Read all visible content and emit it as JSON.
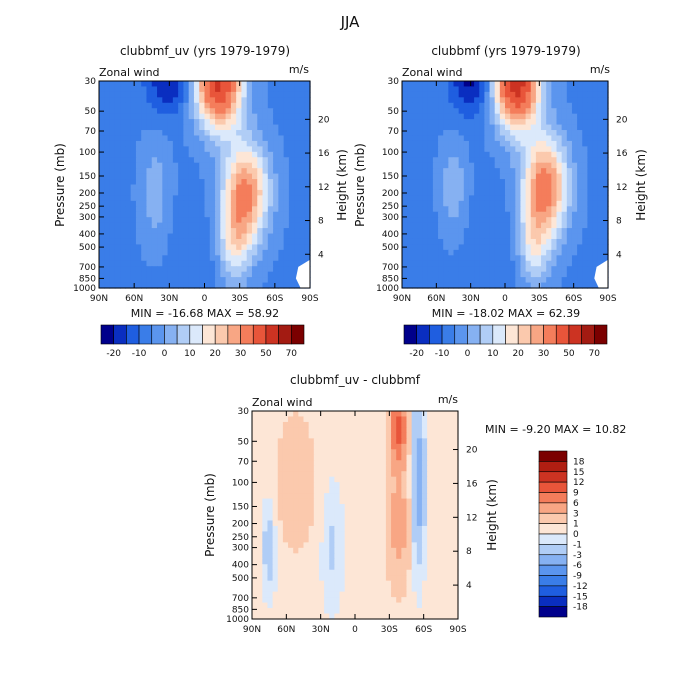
{
  "page_title": "JJA",
  "chart_data": [
    {
      "type": "heatmap",
      "title": "clubbmf_uv (yrs 1979-1979)",
      "variable_label": "Zonal wind",
      "units": "m/s",
      "ylabel": "Pressure (mb)",
      "y2label": "Height (km)",
      "xticks": [
        "90N",
        "60N",
        "30N",
        "0",
        "30S",
        "60S",
        "90S"
      ],
      "yticks": [
        "30",
        "50",
        "70",
        "100",
        "150",
        "200",
        "250",
        "300",
        "400",
        "500",
        "700",
        "850",
        "1000"
      ],
      "y2ticks": [
        "20",
        "16",
        "12",
        "8",
        "4"
      ],
      "stats": "MIN = -16.68   MAX = 58.92",
      "colorbar": {
        "labels": [
          "-20",
          "-10",
          "0",
          "10",
          "20",
          "30",
          "50",
          "70"
        ],
        "colors": [
          "#00008b",
          "#0a2ec0",
          "#1f5ee0",
          "#3a7de8",
          "#5b95ee",
          "#86b1f2",
          "#b0cdf6",
          "#dbe9fb",
          "#fde6d6",
          "#fbc9ad",
          "#f8a684",
          "#f47d5b",
          "#e8553a",
          "#cc3322",
          "#a31b12",
          "#7b0000"
        ]
      },
      "field": {
        "background": -6,
        "features": [
          {
            "lat": -12,
            "p": 30,
            "amp": 58,
            "sx": 14,
            "sy": 0.55
          },
          {
            "lat": -35,
            "p": 200,
            "amp": 38,
            "sx": 14,
            "sy": 0.6
          },
          {
            "lat": -25,
            "p": 500,
            "amp": 18,
            "sx": 10,
            "sy": 0.5
          },
          {
            "lat": 30,
            "p": 30,
            "amp": -14,
            "sx": 14,
            "sy": 0.4
          },
          {
            "lat": 42,
            "p": 200,
            "amp": 9,
            "sx": 9,
            "sy": 0.65
          },
          {
            "lat": 0,
            "p": 600,
            "amp": -3,
            "sx": 20,
            "sy": 0.7
          }
        ]
      }
    },
    {
      "type": "heatmap",
      "title": "clubbmf (yrs 1979-1979)",
      "variable_label": "Zonal wind",
      "units": "m/s",
      "ylabel": "Pressure (mb)",
      "y2label": "Height (km)",
      "xticks": [
        "90N",
        "60N",
        "30N",
        "0",
        "30S",
        "60S",
        "90S"
      ],
      "yticks": [
        "30",
        "50",
        "70",
        "100",
        "150",
        "200",
        "250",
        "300",
        "400",
        "500",
        "700",
        "850",
        "1000"
      ],
      "y2ticks": [
        "20",
        "16",
        "12",
        "8",
        "4"
      ],
      "stats": "MIN = -18.02   MAX = 62.39",
      "colorbar": {
        "labels": [
          "-20",
          "-10",
          "0",
          "10",
          "20",
          "30",
          "50",
          "70"
        ],
        "colors": [
          "#00008b",
          "#0a2ec0",
          "#1f5ee0",
          "#3a7de8",
          "#5b95ee",
          "#86b1f2",
          "#b0cdf6",
          "#dbe9fb",
          "#fde6d6",
          "#fbc9ad",
          "#f8a684",
          "#f47d5b",
          "#e8553a",
          "#cc3322",
          "#a31b12",
          "#7b0000"
        ]
      },
      "field": {
        "background": -6,
        "features": [
          {
            "lat": -10,
            "p": 30,
            "amp": 62,
            "sx": 14,
            "sy": 0.55
          },
          {
            "lat": -35,
            "p": 180,
            "amp": 40,
            "sx": 14,
            "sy": 0.6
          },
          {
            "lat": -25,
            "p": 500,
            "amp": 18,
            "sx": 10,
            "sy": 0.5
          },
          {
            "lat": 28,
            "p": 30,
            "amp": -16,
            "sx": 14,
            "sy": 0.4
          },
          {
            "lat": 45,
            "p": 180,
            "amp": 10,
            "sx": 8,
            "sy": 0.55
          },
          {
            "lat": 0,
            "p": 600,
            "amp": -3,
            "sx": 20,
            "sy": 0.7
          }
        ]
      }
    },
    {
      "type": "heatmap",
      "title": "clubbmf_uv - clubbmf",
      "variable_label": "Zonal wind",
      "units": "m/s",
      "ylabel": "Pressure (mb)",
      "y2label": "Height (km)",
      "xticks": [
        "90N",
        "60N",
        "30N",
        "0",
        "30S",
        "60S",
        "90S"
      ],
      "yticks": [
        "30",
        "50",
        "70",
        "100",
        "150",
        "200",
        "250",
        "300",
        "400",
        "500",
        "700",
        "850",
        "1000"
      ],
      "y2ticks": [
        "20",
        "16",
        "12",
        "8",
        "4"
      ],
      "stats": "MIN =  -9.20   MAX =  10.82",
      "colorbar": {
        "labels": [
          "18",
          "15",
          "12",
          "9",
          "6",
          "3",
          "1",
          "0",
          "-1",
          "-3",
          "-6",
          "-9",
          "-12",
          "-15",
          "-18"
        ],
        "colors": [
          "#7b0000",
          "#b01e12",
          "#cc3322",
          "#e8553a",
          "#f47d5b",
          "#f8a684",
          "#fbc9ad",
          "#fde6d6",
          "#dbe9fb",
          "#b0cdf6",
          "#86b1f2",
          "#5b95ee",
          "#3a7de8",
          "#1f5ee0",
          "#0a2ec0",
          "#00008b"
        ]
      },
      "field": {
        "background": 0.3,
        "features": [
          {
            "lat": -38,
            "p": 40,
            "amp": 10,
            "sx": 5,
            "sy": 0.4
          },
          {
            "lat": -38,
            "p": 200,
            "amp": 4,
            "sx": 7,
            "sy": 0.7
          },
          {
            "lat": -55,
            "p": 100,
            "amp": -5,
            "sx": 4,
            "sy": 0.9
          },
          {
            "lat": 52,
            "p": 100,
            "amp": 2,
            "sx": 12,
            "sy": 0.8
          },
          {
            "lat": 75,
            "p": 300,
            "amp": -2.5,
            "sx": 4,
            "sy": 0.5
          },
          {
            "lat": 20,
            "p": 300,
            "amp": -1.5,
            "sx": 6,
            "sy": 0.7
          }
        ]
      }
    }
  ]
}
